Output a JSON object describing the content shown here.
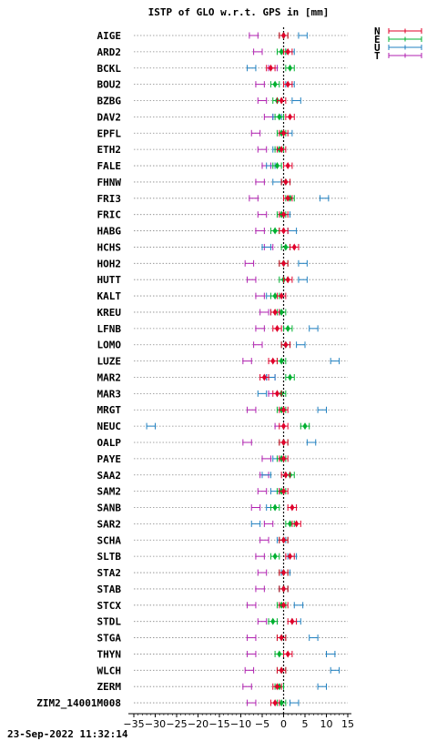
{
  "chart_data": {
    "type": "scatter",
    "title": "ISTP of GLO w.r.t. GPS in [mm]",
    "xlim": [
      -35,
      15
    ],
    "xticks": [
      -35,
      -30,
      -25,
      -20,
      -15,
      -10,
      -5,
      0,
      5,
      10,
      15
    ],
    "xtick_labels": [
      "−35",
      "−30",
      "−25",
      "−20",
      "−15",
      "−10",
      "−5",
      "0",
      "5",
      "10",
      "15"
    ],
    "grid": "horizontal dotted",
    "reference_line_x": 0,
    "legend_position": "top-right",
    "series": [
      {
        "name": "N",
        "color": "#e0002a"
      },
      {
        "name": "E",
        "color": "#00b030"
      },
      {
        "name": "U",
        "color": "#2080c0"
      },
      {
        "name": "T",
        "color": "#b020b0"
      }
    ],
    "stations": [
      "AIGE",
      "ARD2",
      "BCKL",
      "BOU2",
      "BZBG",
      "DAV2",
      "EPFL",
      "ETH2",
      "FALE",
      "FHNW",
      "FRI3",
      "FRIC",
      "HABG",
      "HCHS",
      "HOH2",
      "HUTT",
      "KALT",
      "KREU",
      "LFNB",
      "LOMO",
      "LUZE",
      "MAR2",
      "MAR3",
      "MRGT",
      "NEUC",
      "OALP",
      "PAYE",
      "SAA2",
      "SAM2",
      "SANB",
      "SAR2",
      "SCHA",
      "SLTB",
      "STA2",
      "STAB",
      "STCX",
      "STDL",
      "STGA",
      "THYN",
      "WLCH",
      "ZERM",
      "ZIM2_14001M008"
    ],
    "values": {
      "N": [
        0,
        1,
        -3,
        1,
        -0.5,
        1.5,
        0,
        -0.5,
        1,
        0.5,
        1,
        0,
        0,
        2.5,
        0,
        1,
        -0.5,
        -2,
        -1.5,
        0.5,
        -2.5,
        -4.5,
        -1.5,
        0,
        0,
        0,
        0,
        0.5,
        0,
        2,
        3,
        0,
        1.5,
        0,
        0,
        0,
        2,
        -0.5,
        1,
        -0.5,
        -1.5,
        -2
      ],
      "E": [
        0,
        -0.5,
        1.5,
        -2,
        -1.5,
        -1,
        -0.5,
        -1,
        -1.5,
        0.5,
        1.5,
        -0.5,
        -2,
        0.5,
        0,
        0,
        -2,
        -0.5,
        1,
        0.5,
        -0.5,
        1.5,
        -0.5,
        -0.5,
        5,
        0,
        -0.5,
        1.5,
        -0.5,
        -2,
        1.5,
        0,
        -2,
        0,
        0,
        -0.5,
        -2.5,
        -0.5,
        -1,
        -0.5,
        -1,
        -0.5
      ],
      "U": [
        4.5,
        1.5,
        -7.5,
        1.5,
        3,
        -1.5,
        1,
        -1.5,
        -3,
        -1.5,
        9.5,
        0.5,
        2,
        -4,
        4.5,
        4.5,
        -3,
        -2,
        7,
        4,
        12,
        -3,
        -5,
        9,
        -31,
        6.5,
        -1.5,
        -4,
        -2,
        -3,
        -6.5,
        -0.5,
        2,
        0.5,
        0,
        3.5,
        3,
        7,
        11,
        12,
        9,
        2.5
      ],
      "T": [
        -7,
        -6,
        -2.5,
        -5.5,
        -5,
        -3.5,
        -6.5,
        -5,
        -4,
        -5.5,
        -7,
        -5,
        -5.5,
        -3.5,
        -8,
        -7.5,
        -5.5,
        -4.5,
        -5.5,
        -6,
        -8.5,
        -3,
        -2.5,
        -7.5,
        -1,
        -8.5,
        -4,
        -4.5,
        -5,
        -6.5,
        -3.5,
        -4.5,
        -5.5,
        -5,
        -5.5,
        -7.5,
        -5,
        -7.5,
        -7.5,
        -8,
        -8.5,
        -7.5
      ]
    },
    "error_bar_halfwidth": 1
  },
  "footer": {
    "timestamp": "23-Sep-2022 11:32:14"
  }
}
